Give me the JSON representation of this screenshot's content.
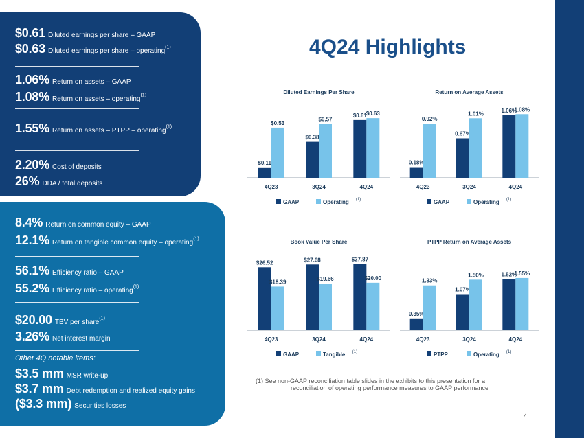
{
  "title": "4Q24 Highlights",
  "colors": {
    "gaap": "#123f76",
    "operating": "#77c3ea"
  },
  "highlights_top": [
    {
      "value": "$0.61",
      "label": "Diluted earnings per share – GAAP",
      "sup": ""
    },
    {
      "value": "$0.63",
      "label": "Diluted earnings per share – operating",
      "sup": "(1)"
    },
    {
      "value": "1.06%",
      "label": "Return on assets – GAAP",
      "sup": ""
    },
    {
      "value": "1.08%",
      "label": "Return on assets – operating",
      "sup": "(1)"
    },
    {
      "value": "1.55%",
      "label": "Return on assets – PTPP – operating",
      "sup": "(1)"
    },
    {
      "value": "2.20%",
      "label": "Cost of deposits",
      "sup": ""
    },
    {
      "value": "26%",
      "label": "DDA / total deposits",
      "sup": ""
    }
  ],
  "highlights_bottom": [
    {
      "value": "8.4%",
      "label": "Return on common equity – GAAP",
      "sup": ""
    },
    {
      "value": "12.1%",
      "label": "Return on tangible common equity – operating",
      "sup": "(1)"
    },
    {
      "value": "56.1%",
      "label": "Efficiency ratio – GAAP",
      "sup": ""
    },
    {
      "value": "55.2%",
      "label": "Efficiency ratio – operating",
      "sup": "(1)"
    },
    {
      "value": "$20.00",
      "label": "TBV per share",
      "sup": "(1)"
    },
    {
      "value": "3.26%",
      "label": "Net interest margin",
      "sup": ""
    }
  ],
  "other_items_title": "Other 4Q notable items:",
  "other_items": [
    {
      "value": "$3.5 mm",
      "label": "MSR write-up"
    },
    {
      "value": "$3.7 mm",
      "label": "Debt redemption and realized equity gains"
    },
    {
      "value": "($3.3 mm)",
      "label": "Securities losses"
    }
  ],
  "footnote": {
    "marker": "(1)",
    "line1": "See non-GAAP reconciliation table slides in the exhibits to this presentation for a",
    "line2": "reconciliation of operating performance measures to GAAP performance"
  },
  "page_number": "4",
  "chart_data": [
    {
      "type": "bar",
      "title": "Diluted Earnings Per Share",
      "categories": [
        "4Q23",
        "3Q24",
        "4Q24"
      ],
      "series": [
        {
          "name": "GAAP",
          "values": [
            0.11,
            0.38,
            0.61
          ],
          "labels": [
            "$0.11",
            "$0.38",
            "$0.61"
          ]
        },
        {
          "name": "Operating",
          "sup": "(1)",
          "values": [
            0.53,
            0.57,
            0.63
          ],
          "labels": [
            "$0.53",
            "$0.57",
            "$0.63"
          ]
        }
      ],
      "ylim": [
        0,
        0.66
      ]
    },
    {
      "type": "bar",
      "title": "Return on Average Assets",
      "categories": [
        "4Q23",
        "3Q24",
        "4Q24"
      ],
      "series": [
        {
          "name": "GAAP",
          "values": [
            0.18,
            0.67,
            1.06
          ],
          "labels": [
            "0.18%",
            "0.67%",
            "1.06%"
          ]
        },
        {
          "name": "Operating",
          "sup": "(1)",
          "values": [
            0.92,
            1.01,
            1.08
          ],
          "labels": [
            "0.92%",
            "1.01%",
            "1.08%"
          ]
        }
      ],
      "ylim": [
        0,
        1.13
      ]
    },
    {
      "type": "bar",
      "title": "Book Value Per Share",
      "categories": [
        "4Q23",
        "3Q24",
        "4Q24"
      ],
      "series": [
        {
          "name": "GAAP",
          "values": [
            26.52,
            27.68,
            27.87
          ],
          "labels": [
            "$26.52",
            "$27.68",
            "$27.87"
          ]
        },
        {
          "name": "Tangible",
          "sup": "(1)",
          "values": [
            18.39,
            19.66,
            20.0
          ],
          "labels": [
            "$18.39",
            "$19.66",
            "$20.00"
          ]
        }
      ],
      "ylim": [
        0,
        29.5
      ]
    },
    {
      "type": "bar",
      "title": "PTPP Return on Average Assets",
      "categories": [
        "4Q23",
        "3Q24",
        "4Q24"
      ],
      "series": [
        {
          "name": "PTPP",
          "values": [
            0.35,
            1.07,
            1.52
          ],
          "labels": [
            "0.35%",
            "1.07%",
            "1.52%"
          ]
        },
        {
          "name": "Operating",
          "sup": "(1)",
          "values": [
            1.33,
            1.5,
            1.55
          ],
          "labels": [
            "1.33%",
            "1.50%",
            "1.55%"
          ]
        }
      ],
      "ylim": [
        0,
        1.63
      ]
    }
  ]
}
